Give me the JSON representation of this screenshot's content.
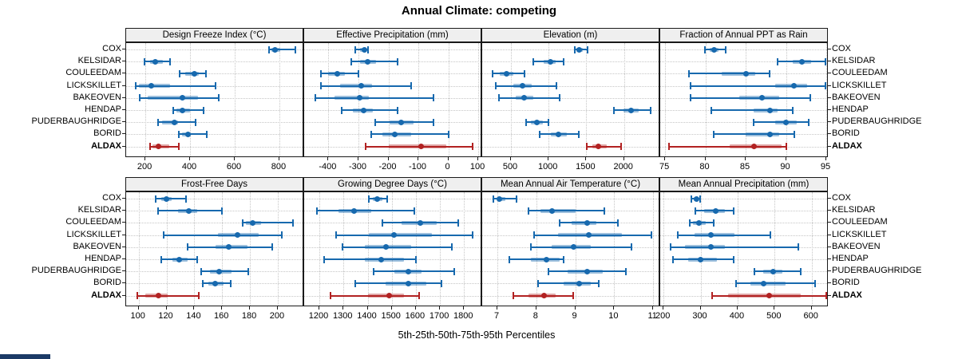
{
  "title": "Annual Climate: competing",
  "xlabel": "5th-25th-50th-75th-95th Percentiles",
  "stations": [
    "COX",
    "KELSIDAR",
    "COULEEDAM",
    "LICKSKILLET",
    "BAKEOVEN",
    "HENDAP",
    "PUDERBAUGHRIDGE",
    "BORID",
    "ALDAX"
  ],
  "highlight_station": "ALDAX",
  "colors": {
    "series": "#1769ae",
    "series_band": "rgba(23,105,174,0.42)",
    "highlight": "#b22222",
    "highlight_band": "rgba(178,34,34,0.40)",
    "strip_bg": "#efefef",
    "panel_border": "#1a1a1a",
    "grid": "#c6c6c6",
    "corner_artifact": "#1b3a66"
  },
  "chart_data": {
    "type": "dotplot-intervals",
    "percentiles": [
      5,
      25,
      50,
      75,
      95
    ],
    "legend_note": "blue = competing stations, dark red = ALDAX (highlighted)",
    "grid": "dotted",
    "panels": [
      {
        "title": "Design Freeze Index (°C)",
        "ticks": [
          200,
          400,
          600,
          800
        ],
        "domain": [
          114,
          911
        ],
        "values": {
          "COX": [
            755,
            765,
            780,
            805,
            870
          ],
          "KELSIDAR": [
            195,
            220,
            245,
            280,
            310
          ],
          "COULEEDAM": [
            355,
            380,
            420,
            440,
            470
          ],
          "LICKSKILLET": [
            155,
            170,
            225,
            310,
            515
          ],
          "BAKEOVEN": [
            175,
            210,
            365,
            435,
            530
          ],
          "HENDAP": [
            325,
            340,
            365,
            400,
            460
          ],
          "PUDERBAUGHRIDGE": [
            255,
            275,
            330,
            345,
            425
          ],
          "BORID": [
            350,
            365,
            390,
            405,
            475
          ],
          "ALDAX": [
            220,
            230,
            260,
            305,
            350
          ]
        }
      },
      {
        "title": "Effective Precipitation (mm)",
        "ticks": [
          -400,
          -300,
          -200,
          -100,
          0,
          100
        ],
        "domain": [
          -481,
          113
        ],
        "values": {
          "COX": [
            -310,
            -295,
            -280,
            -272,
            -267
          ],
          "KELSIDAR": [
            -325,
            -295,
            -270,
            -240,
            -170
          ],
          "COULEEDAM": [
            -425,
            -400,
            -370,
            -345,
            -300
          ],
          "LICKSKILLET": [
            -425,
            -360,
            -290,
            -255,
            -125
          ],
          "BAKEOVEN": [
            -445,
            -380,
            -297,
            -265,
            -50
          ],
          "HENDAP": [
            -355,
            -318,
            -284,
            -251,
            -170
          ],
          "PUDERBAUGHRIDGE": [
            -245,
            -195,
            -157,
            -115,
            -50
          ],
          "BORID": [
            -258,
            -220,
            -180,
            -123,
            0
          ],
          "ALDAX": [
            -275,
            -200,
            -92,
            -8,
            80
          ]
        }
      },
      {
        "title": "Elevation (m)",
        "ticks": [
          500,
          1000,
          1500,
          2000
        ],
        "domain": [
          119,
          2480
        ],
        "values": {
          "COX": [
            1350,
            1370,
            1410,
            1455,
            1520
          ],
          "KELSIDAR": [
            795,
            935,
            1020,
            1095,
            1200
          ],
          "COULEEDAM": [
            255,
            355,
            445,
            530,
            680
          ],
          "LICKSKILLET": [
            300,
            530,
            655,
            780,
            1105
          ],
          "BAKEOVEN": [
            345,
            565,
            675,
            795,
            1150
          ],
          "HENDAP": [
            1865,
            1995,
            2090,
            2190,
            2355
          ],
          "PUDERBAUGHRIDGE": [
            700,
            760,
            840,
            920,
            1000
          ],
          "BORID": [
            880,
            1030,
            1130,
            1240,
            1400
          ],
          "ALDAX": [
            1510,
            1575,
            1660,
            1770,
            1960
          ]
        }
      },
      {
        "title": "Fraction of Annual PPT as Rain",
        "ticks": [
          75,
          80,
          85,
          90,
          95
        ],
        "domain": [
          74.4,
          95.3
        ],
        "values": {
          "COX": [
            79.9,
            80.5,
            81.1,
            81.6,
            82.5
          ],
          "KELSIDAR": [
            89,
            90.8,
            92,
            93.1,
            94.9
          ],
          "COULEEDAM": [
            78,
            82,
            85,
            86.2,
            88
          ],
          "LICKSKILLET": [
            78.2,
            88.7,
            91,
            92.6,
            94.9
          ],
          "BAKEOVEN": [
            78.2,
            84.2,
            87,
            89.2,
            93
          ],
          "HENDAP": [
            80.7,
            86,
            88,
            89,
            90.8
          ],
          "PUDERBAUGHRIDGE": [
            86,
            88.7,
            90,
            91.3,
            92.8
          ],
          "BORID": [
            81,
            85,
            88,
            89.2,
            91
          ],
          "ALDAX": [
            75.5,
            83,
            86,
            89.5,
            90
          ]
        }
      },
      {
        "title": "Frost-Free Days",
        "ticks": [
          100,
          120,
          140,
          160,
          180,
          200
        ],
        "domain": [
          91,
          219
        ],
        "values": {
          "COX": [
            112,
            116,
            120,
            124,
            134
          ],
          "KELSIDAR": [
            114,
            128,
            136,
            142,
            160
          ],
          "COULEEDAM": [
            175,
            177,
            182,
            188,
            211
          ],
          "LICKSKILLET": [
            118,
            157,
            171,
            186,
            203
          ],
          "BAKEOVEN": [
            135,
            155,
            165,
            178,
            196
          ],
          "HENDAP": [
            116,
            124,
            129,
            135,
            142
          ],
          "PUDERBAUGHRIDGE": [
            145,
            151,
            158,
            167,
            179
          ],
          "BORID": [
            146,
            150,
            155,
            161,
            166
          ],
          "ALDAX": [
            99,
            105,
            114,
            121,
            143
          ]
        }
      },
      {
        "title": "Growing Degree Days (°C)",
        "ticks": [
          1200,
          1300,
          1400,
          1500,
          1600,
          1700,
          1800
        ],
        "domain": [
          1137,
          1875
        ],
        "values": {
          "COX": [
            1405,
            1420,
            1440,
            1460,
            1480
          ],
          "KELSIDAR": [
            1190,
            1280,
            1345,
            1415,
            1595
          ],
          "COULEEDAM": [
            1460,
            1540,
            1620,
            1685,
            1775
          ],
          "LICKSKILLET": [
            1270,
            1405,
            1510,
            1665,
            1835
          ],
          "BAKEOVEN": [
            1295,
            1390,
            1475,
            1580,
            1750
          ],
          "HENDAP": [
            1220,
            1390,
            1455,
            1550,
            1600
          ],
          "PUDERBAUGHRIDGE": [
            1425,
            1510,
            1570,
            1625,
            1760
          ],
          "BORID": [
            1350,
            1475,
            1570,
            1645,
            1705
          ],
          "ALDAX": [
            1245,
            1400,
            1490,
            1550,
            1615
          ]
        }
      },
      {
        "title": "Mean Annual Air Temperature (°C)",
        "ticks": [
          7,
          8,
          9,
          10,
          11
        ],
        "domain": [
          6.61,
          11.18
        ],
        "values": {
          "COX": [
            6.9,
            7.0,
            7.05,
            7.2,
            7.5
          ],
          "KELSIDAR": [
            7.8,
            8.1,
            8.4,
            9.0,
            9.75
          ],
          "COULEEDAM": [
            8.6,
            8.9,
            9.3,
            9.55,
            10.1
          ],
          "LICKSKILLET": [
            7.95,
            8.55,
            9.35,
            10.2,
            10.95
          ],
          "BAKEOVEN": [
            7.85,
            8.4,
            8.95,
            9.4,
            10.45
          ],
          "HENDAP": [
            7.3,
            7.85,
            8.25,
            8.6,
            8.7
          ],
          "PUDERBAUGHRIDGE": [
            8.3,
            8.8,
            9.3,
            9.7,
            10.3
          ],
          "BORID": [
            8.05,
            8.7,
            9.1,
            9.4,
            9.6
          ],
          "ALDAX": [
            7.4,
            7.8,
            8.2,
            8.5,
            8.95
          ]
        }
      },
      {
        "title": "Mean Annual Precipitation (mm)",
        "ticks": [
          200,
          300,
          400,
          500,
          600
        ],
        "domain": [
          191,
          646
        ],
        "values": {
          "COX": [
            275,
            282,
            290,
            295,
            298
          ],
          "KELSIDAR": [
            285,
            310,
            340,
            365,
            390
          ],
          "COULEEDAM": [
            270,
            280,
            296,
            315,
            336
          ],
          "LICKSKILLET": [
            238,
            284,
            328,
            392,
            489
          ],
          "BAKEOVEN": [
            218,
            258,
            327,
            365,
            565
          ],
          "HENDAP": [
            226,
            267,
            300,
            344,
            389
          ],
          "PUDERBAUGHRIDGE": [
            445,
            470,
            495,
            520,
            570
          ],
          "BORID": [
            395,
            435,
            470,
            530,
            610
          ],
          "ALDAX": [
            330,
            375,
            485,
            570,
            640
          ]
        }
      }
    ]
  }
}
